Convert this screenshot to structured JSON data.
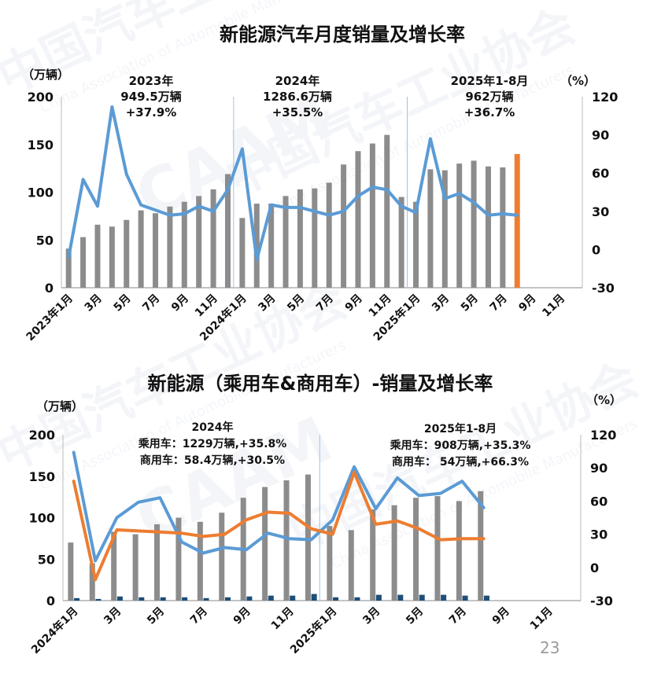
{
  "watermark": {
    "cn": "中国汽车工业协会",
    "en": "China Association of Automobile Manufacturers",
    "logo": "CAAM"
  },
  "page_number": "23",
  "chart_data": [
    {
      "type": "bar+line",
      "title": "新能源汽车月度销量及增长率",
      "y_left_unit": "（万辆）",
      "y_right_unit": "（%）",
      "ylim_left": [
        0,
        200
      ],
      "ylim_right": [
        -30,
        120
      ],
      "yticks_left": [
        "0",
        "50",
        "100",
        "150",
        "200"
      ],
      "yticks_right": [
        "-30",
        "0",
        "30",
        "60",
        "90",
        "120"
      ],
      "xticks": [
        "2023年1月",
        "3月",
        "5月",
        "7月",
        "9月",
        "11月",
        "2024年1月",
        "3月",
        "5月",
        "7月",
        "9月",
        "11月",
        "2025年1月",
        "3月",
        "5月",
        "7月",
        "9月",
        "11月"
      ],
      "xlim_months": 36,
      "annotations": [
        {
          "lines": [
            "2023年",
            "949.5万辆",
            "+37.9%"
          ]
        },
        {
          "lines": [
            "2024年",
            "1286.6万辆",
            "+35.5%"
          ]
        },
        {
          "lines": [
            "2025年1-8月",
            "962万辆",
            "+36.7%"
          ]
        }
      ],
      "series": [
        {
          "kind": "bar",
          "axis": "left",
          "color": "#8c8c8c",
          "highlight_color": "#ed7d31",
          "highlight_index": 31,
          "values": [
            41,
            53,
            66,
            64,
            71,
            81,
            78,
            85,
            90,
            96,
            103,
            119,
            73,
            88,
            88,
            96,
            103,
            104,
            110,
            129,
            143,
            151,
            160,
            95,
            90,
            124,
            123,
            130,
            133,
            127,
            126,
            140
          ]
        },
        {
          "kind": "line",
          "axis": "right",
          "color": "#5b9bd5",
          "values": [
            -6,
            55,
            34,
            112,
            59,
            35,
            31,
            27,
            28,
            34,
            30,
            47,
            79,
            -8,
            35,
            33,
            33,
            30,
            27,
            30,
            42,
            49,
            47,
            34,
            29,
            87,
            40,
            44,
            37,
            27,
            28,
            27
          ]
        }
      ]
    },
    {
      "type": "bar+line",
      "title": "新能源（乘用车&商用车）-销量及增长率",
      "y_left_unit": "（万辆）",
      "y_right_unit": "（%）",
      "ylim_left": [
        0,
        200
      ],
      "ylim_right": [
        -30,
        120
      ],
      "yticks_left": [
        "0",
        "50",
        "100",
        "150",
        "200"
      ],
      "yticks_right": [
        "-30",
        "0",
        "30",
        "60",
        "90",
        "120"
      ],
      "xticks": [
        "2024年1月",
        "3月",
        "5月",
        "7月",
        "9月",
        "11月",
        "2025年1月",
        "3月",
        "5月",
        "7月",
        "9月",
        "11月"
      ],
      "xlim_months": 24,
      "annotations": [
        {
          "lines": [
            "2024年",
            "乘用车：1229万辆,+35.8%",
            "商用车：58.4万辆,+30.5%"
          ]
        },
        {
          "lines": [
            "2025年1-8月",
            "乘用车：908万辆,+35.3%",
            "商用车： 54万辆,+66.3%"
          ]
        }
      ],
      "series": [
        {
          "kind": "bar",
          "axis": "left",
          "color": "#8c8c8c",
          "values": [
            70,
            45,
            83,
            80,
            92,
            100,
            95,
            106,
            124,
            137,
            145,
            152,
            90,
            85,
            110,
            115,
            124,
            126,
            120,
            132
          ]
        },
        {
          "kind": "bar",
          "axis": "left",
          "color": "#1f4e79",
          "values": [
            3,
            2,
            5,
            4,
            4,
            4,
            3,
            4,
            5,
            6,
            6,
            8,
            4,
            4,
            7,
            7,
            7,
            7,
            6,
            6
          ]
        },
        {
          "kind": "line",
          "axis": "right",
          "color": "#5b9bd5",
          "values": [
            104,
            6,
            45,
            59,
            63,
            23,
            13,
            18,
            16,
            31,
            26,
            25,
            43,
            91,
            53,
            81,
            65,
            67,
            78,
            54
          ]
        },
        {
          "kind": "line",
          "axis": "right",
          "color": "#ed7d31",
          "values": [
            78,
            -11,
            34,
            33,
            32,
            31,
            28,
            30,
            43,
            50,
            49,
            35,
            30,
            86,
            39,
            42,
            35,
            25,
            26,
            26
          ]
        }
      ]
    }
  ]
}
